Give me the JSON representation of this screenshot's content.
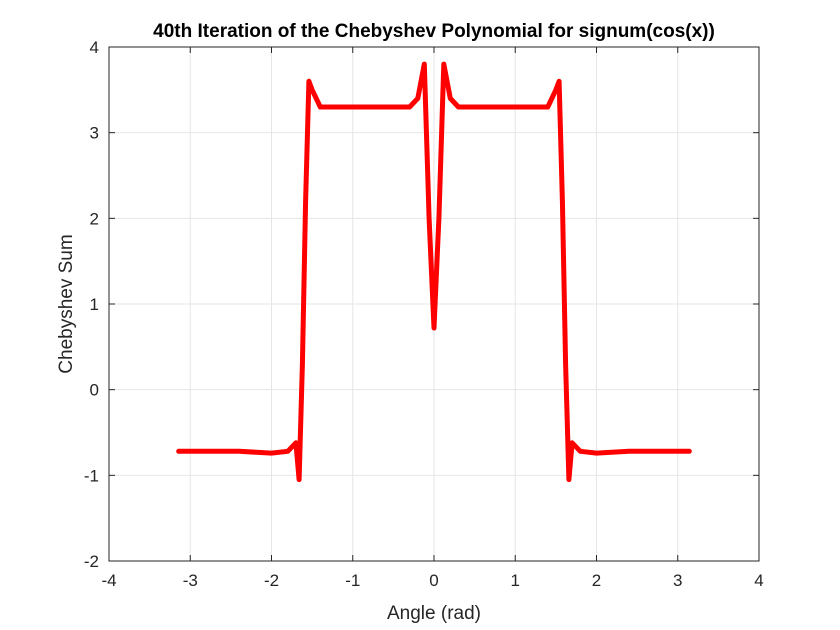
{
  "chart_data": {
    "type": "line",
    "title": "40th Iteration of the Chebyshev Polynomial for signum(cos(x))",
    "xlabel": "Angle (rad)",
    "ylabel": "Chebyshev Sum",
    "xlim": [
      -4,
      4
    ],
    "ylim": [
      -2,
      4
    ],
    "xticks": [
      "-4",
      "-3",
      "-2",
      "-1",
      "0",
      "1",
      "2",
      "3",
      "4"
    ],
    "yticks": [
      "-2",
      "-1",
      "0",
      "1",
      "2",
      "3",
      "4"
    ],
    "grid": true,
    "series_color": "#ff0000",
    "series": [
      {
        "x": [
          -3.1416,
          -2.8,
          -2.4,
          -2.0,
          -1.8,
          -1.7,
          -1.66,
          -1.62,
          -1.58,
          -1.54,
          -1.5,
          -1.4,
          -1.0,
          -0.5,
          -0.3,
          -0.2,
          -0.12,
          -0.06,
          0.0,
          0.06,
          0.12,
          0.2,
          0.3,
          0.5,
          1.0,
          1.4,
          1.5,
          1.54,
          1.58,
          1.62,
          1.66,
          1.7,
          1.8,
          2.0,
          2.4,
          2.8,
          3.1416
        ],
        "y": [
          -0.72,
          -0.72,
          -0.72,
          -0.74,
          -0.72,
          -0.62,
          -1.05,
          0.3,
          2.2,
          3.6,
          3.5,
          3.3,
          3.3,
          3.3,
          3.3,
          3.4,
          3.8,
          2.0,
          0.72,
          2.0,
          3.8,
          3.4,
          3.3,
          3.3,
          3.3,
          3.3,
          3.5,
          3.6,
          2.2,
          0.3,
          -1.05,
          -0.62,
          -0.72,
          -0.74,
          -0.72,
          -0.72,
          -0.72
        ]
      }
    ]
  }
}
